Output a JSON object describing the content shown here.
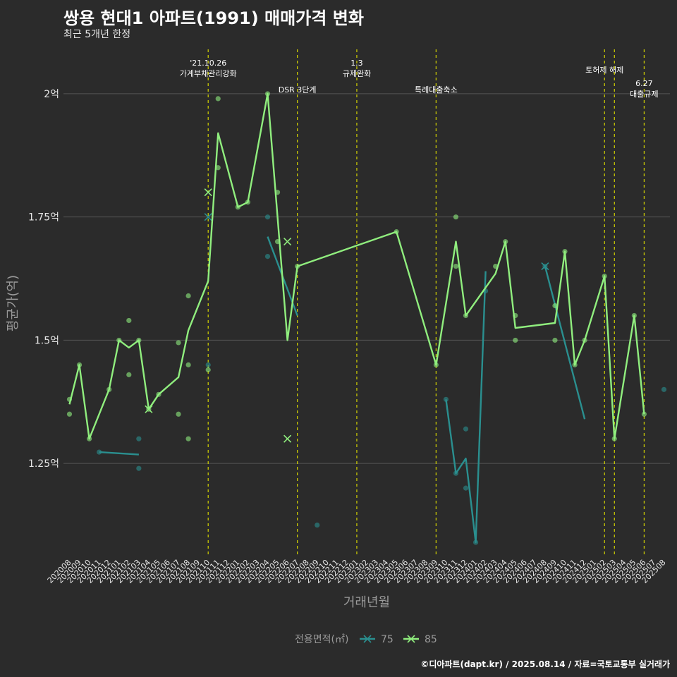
{
  "header": {
    "title": "쌍용 현대1 아파트(1991) 매매가격 변화",
    "subtitle": "최근 5개년 한정"
  },
  "caption": "©디아파트(dapt.kr) / 2025.08.14 / 자료=국토교통부 실거래가",
  "chart_data": {
    "type": "line",
    "xlabel": "거래년월",
    "ylabel": "평균가(억)",
    "ylim": [
      1.06,
      2.09
    ],
    "yticks": [
      1.25,
      1.5,
      1.75,
      2.0
    ],
    "ytick_labels": [
      "1.25억",
      "1.5억",
      "1.75억",
      "2억"
    ],
    "categories": [
      "202008",
      "202009",
      "202010",
      "202011",
      "202012",
      "202101",
      "202102",
      "202103",
      "202104",
      "202105",
      "202106",
      "202107",
      "202108",
      "202109",
      "202110",
      "202111",
      "202112",
      "202201",
      "202202",
      "202203",
      "202204",
      "202205",
      "202206",
      "202207",
      "202208",
      "202209",
      "202210",
      "202211",
      "202212",
      "202301",
      "202302",
      "202303",
      "202304",
      "202305",
      "202306",
      "202307",
      "202308",
      "202309",
      "202310",
      "202311",
      "202312",
      "202401",
      "202402",
      "202403",
      "202404",
      "202405",
      "202406",
      "202407",
      "202408",
      "202409",
      "202410",
      "202411",
      "202412",
      "202501",
      "202502",
      "202503",
      "202504",
      "202505",
      "202506",
      "202507",
      "202508"
    ],
    "legend": {
      "title": "전용면적(㎡)",
      "position": "bottom"
    },
    "colors": {
      "s75": "#2a8f8f",
      "s85": "#90ee7e",
      "event": "#d4d400",
      "grid": "#555555"
    },
    "series": [
      {
        "name": "75",
        "lines": [
          [
            [
              "202011",
              1.273
            ],
            [
              "202103",
              1.268
            ]
          ],
          [
            [
              "202204",
              1.71
            ],
            [
              "202207",
              1.55
            ]
          ],
          [
            [
              "202310",
              1.38
            ],
            [
              "202311",
              1.23
            ],
            [
              "202312",
              1.26
            ],
            [
              "202401",
              1.09
            ],
            [
              "202402",
              1.64
            ]
          ],
          [
            [
              "202408",
              1.65
            ],
            [
              "202412",
              1.34
            ]
          ]
        ],
        "points": [
          [
            "202011",
            1.273
          ],
          [
            "202103",
            1.3
          ],
          [
            "202103",
            1.24
          ],
          [
            "202110",
            1.45
          ],
          [
            "202204",
            1.75
          ],
          [
            "202204",
            1.67
          ],
          [
            "202209",
            1.125
          ],
          [
            "202310",
            1.38
          ],
          [
            "202311",
            1.23
          ],
          [
            "202312",
            1.32
          ],
          [
            "202312",
            1.2
          ],
          [
            "202401",
            1.09
          ],
          [
            "202402",
            1.6
          ],
          [
            "202408",
            1.65
          ],
          [
            "202508",
            1.4
          ]
        ],
        "cross_points": [
          [
            "202110",
            1.75
          ],
          [
            "202408",
            1.65
          ]
        ]
      },
      {
        "name": "85",
        "lines": [
          [
            [
              "202008",
              1.37
            ],
            [
              "202009",
              1.45
            ],
            [
              "202010",
              1.3
            ],
            [
              "202012",
              1.4
            ],
            [
              "202101",
              1.5
            ],
            [
              "202102",
              1.485
            ],
            [
              "202103",
              1.5
            ],
            [
              "202104",
              1.36
            ],
            [
              "202105",
              1.39
            ],
            [
              "202107",
              1.425
            ],
            [
              "202108",
              1.52
            ],
            [
              "202110",
              1.62
            ],
            [
              "202111",
              1.92
            ],
            [
              "202201",
              1.77
            ],
            [
              "202202",
              1.78
            ],
            [
              "202204",
              2.0
            ],
            [
              "202206",
              1.5
            ],
            [
              "202207",
              1.65
            ],
            [
              "202305",
              1.72
            ],
            [
              "202309",
              1.45
            ],
            [
              "202311",
              1.7
            ],
            [
              "202312",
              1.55
            ],
            [
              "202403",
              1.635
            ],
            [
              "202404",
              1.7
            ],
            [
              "202405",
              1.525
            ],
            [
              "202409",
              1.535
            ],
            [
              "202410",
              1.68
            ],
            [
              "202411",
              1.45
            ],
            [
              "202412",
              1.5
            ],
            [
              "202502",
              1.63
            ],
            [
              "202503",
              1.3
            ],
            [
              "202505",
              1.55
            ],
            [
              "202506",
              1.35
            ]
          ]
        ],
        "points": [
          [
            "202008",
            1.38
          ],
          [
            "202008",
            1.35
          ],
          [
            "202009",
            1.45
          ],
          [
            "202010",
            1.3
          ],
          [
            "202012",
            1.4
          ],
          [
            "202101",
            1.5
          ],
          [
            "202102",
            1.54
          ],
          [
            "202102",
            1.43
          ],
          [
            "202103",
            1.5
          ],
          [
            "202104",
            1.36
          ],
          [
            "202105",
            1.39
          ],
          [
            "202107",
            1.495
          ],
          [
            "202107",
            1.35
          ],
          [
            "202108",
            1.59
          ],
          [
            "202108",
            1.45
          ],
          [
            "202108",
            1.3
          ],
          [
            "202110",
            1.44
          ],
          [
            "202111",
            1.99
          ],
          [
            "202111",
            1.85
          ],
          [
            "202201",
            1.77
          ],
          [
            "202202",
            1.78
          ],
          [
            "202204",
            2.0
          ],
          [
            "202205",
            1.8
          ],
          [
            "202205",
            1.7
          ],
          [
            "202207",
            1.65
          ],
          [
            "202305",
            1.72
          ],
          [
            "202309",
            1.45
          ],
          [
            "202311",
            1.75
          ],
          [
            "202311",
            1.65
          ],
          [
            "202312",
            1.55
          ],
          [
            "202403",
            1.65
          ],
          [
            "202404",
            1.7
          ],
          [
            "202405",
            1.55
          ],
          [
            "202405",
            1.5
          ],
          [
            "202409",
            1.57
          ],
          [
            "202409",
            1.5
          ],
          [
            "202410",
            1.68
          ],
          [
            "202411",
            1.45
          ],
          [
            "202412",
            1.5
          ],
          [
            "202502",
            1.63
          ],
          [
            "202503",
            1.3
          ],
          [
            "202505",
            1.55
          ],
          [
            "202506",
            1.35
          ]
        ],
        "cross_points": [
          [
            "202110",
            1.8
          ],
          [
            "202104",
            1.36
          ],
          [
            "202206",
            1.7
          ],
          [
            "202206",
            1.3
          ]
        ]
      }
    ],
    "events": [
      {
        "at": "202110",
        "labels": [
          "'21.10.26",
          "가계부채관리강화"
        ],
        "row": 0
      },
      {
        "at": "202207",
        "labels": [
          "DSR 3단계"
        ],
        "row": 2
      },
      {
        "at": "202301",
        "labels": [
          "1.3",
          "규제완화"
        ],
        "row": 0
      },
      {
        "at": "202309",
        "labels": [
          "특례대출축소"
        ],
        "row": 2
      },
      {
        "at": "202502",
        "labels": [
          "토허제 해제"
        ],
        "row": 1
      },
      {
        "at": "202503",
        "labels": [],
        "row": 0
      },
      {
        "at": "202506",
        "labels": [
          "6.27",
          "대출규제"
        ],
        "row": 3
      }
    ]
  }
}
